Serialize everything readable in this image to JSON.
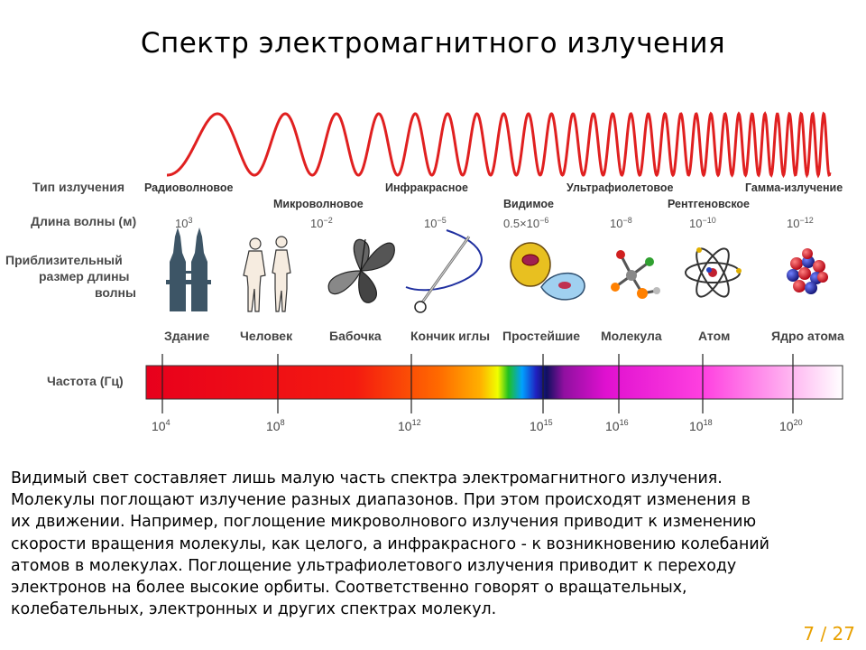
{
  "title": "Спектр электромагнитного излучения",
  "row_labels": {
    "type": "Тип излучения",
    "wavelength": "Длина волны (м)",
    "size": [
      "Приблизительный",
      "размер длины",
      "волны"
    ],
    "frequency": "Частота (Гц)"
  },
  "radiation_types": [
    "Радиоволновое",
    "Микроволновое",
    "Инфракрасное",
    "Видимое",
    "Ультрафиолетовое",
    "Рентгеновское",
    "Гамма-излучение"
  ],
  "wavelengths": [
    {
      "base": "10",
      "exp": "3"
    },
    {
      "base": "10",
      "exp": "−2"
    },
    {
      "base": "10",
      "exp": "−5"
    },
    {
      "base": "0.5×10",
      "exp": "−6"
    },
    {
      "base": "10",
      "exp": "−8"
    },
    {
      "base": "10",
      "exp": "−10"
    },
    {
      "base": "10",
      "exp": "−12"
    }
  ],
  "objects": [
    "Здание",
    "Человек",
    "Бабочка",
    "Кончик иглы",
    "Простейшие",
    "Молекула",
    "Атом",
    "Ядро атома"
  ],
  "frequencies": [
    {
      "base": "10",
      "exp": "4"
    },
    {
      "base": "10",
      "exp": "8"
    },
    {
      "base": "10",
      "exp": "12"
    },
    {
      "base": "10",
      "exp": "15"
    },
    {
      "base": "10",
      "exp": "16"
    },
    {
      "base": "10",
      "exp": "18"
    },
    {
      "base": "10",
      "exp": "20"
    }
  ],
  "paragraph": [
    "Видимый свет составляет лишь малую часть спектра электромагнитного излучения.",
    "Молекулы поглощают излучение разных диапазонов. При этом происходят изменения в",
    "их движении. Например, поглощение микроволнового излучения приводит к изменению",
    "скорости вращения молекулы, как целого, а инфракрасного - к возникновению колебаний",
    "атомов в молекулах. Поглощение ультрафиолетового излучения приводит к переходу",
    "электронов на более высокие орбиты. Соответственно говорят о вращательных,",
    "колебательных, электронных и других спектрах молекул."
  ],
  "page_number": "7 / 27",
  "colors": {
    "wave": "#e02020",
    "page_number": "#e8a000"
  }
}
